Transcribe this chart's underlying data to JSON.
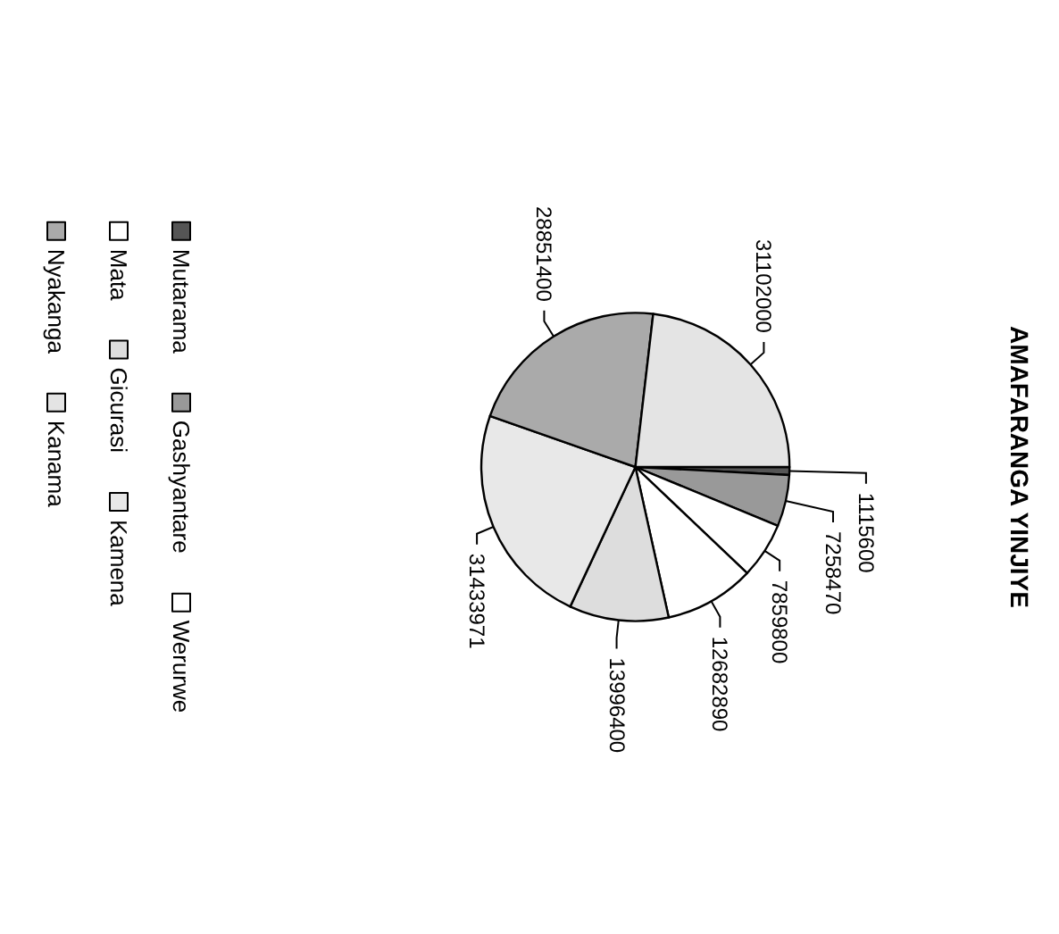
{
  "chart_data": {
    "type": "pie",
    "title": "AMAFARANGA YINJIYE",
    "categories": [
      "Mutarama",
      "Gashyantare",
      "Werurwe",
      "Mata",
      "Gicurasi",
      "Kamena",
      "Nyakanga",
      "Kanama"
    ],
    "values": [
      1115600,
      7258470,
      7859800,
      12682890,
      13996400,
      31433971,
      28851400,
      31102000
    ],
    "colors": [
      "#555555",
      "#999999",
      "#ffffff",
      "#ffffff",
      "#dddddd",
      "#e8e8e8",
      "#aaaaaa",
      "#e4e4e4"
    ],
    "data_labels": true,
    "legend": "left"
  }
}
